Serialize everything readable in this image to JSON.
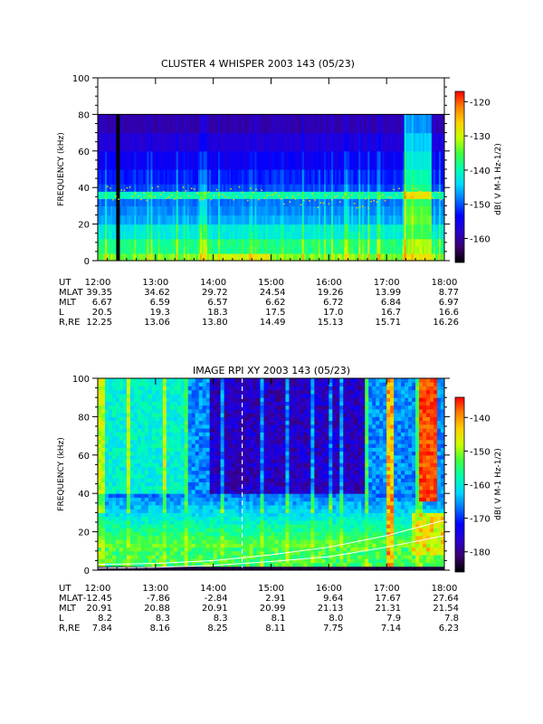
{
  "chart_data": [
    {
      "type": "heatmap",
      "title": "CLUSTER 4 WHISPER 2003 143 (05/23)",
      "ylabel": "FREQUENCY (kHz)",
      "ylim": [
        0,
        100
      ],
      "yticks": [
        "0",
        "20",
        "40",
        "60",
        "80",
        "100"
      ],
      "xlim_hours": [
        12,
        18
      ],
      "xticks": [
        "12:00",
        "13:00",
        "14:00",
        "15:00",
        "16:00",
        "17:00",
        "18:00"
      ],
      "data_top_khz": 80,
      "colorbar": {
        "label": "dB( V M-1 Hz-1/2)",
        "range": [
          -167,
          -117
        ],
        "ticks": [
          "-120",
          "-130",
          "-140",
          "-150",
          "-160"
        ],
        "colors": [
          "#000000",
          "#3a0070",
          "#2a00d0",
          "#0000ff",
          "#0070ff",
          "#00d8ff",
          "#00ffb0",
          "#40ff40",
          "#c8ff00",
          "#ffd000",
          "#ff8000",
          "#ff0000"
        ]
      },
      "ephemeris": {
        "labels": [
          "UT",
          "MLAT",
          "MLT",
          "L",
          "R,RE"
        ],
        "rows": [
          [
            "12:00",
            "13:00",
            "14:00",
            "15:00",
            "16:00",
            "17:00",
            "18:00"
          ],
          [
            "39.35",
            "34.62",
            "29.72",
            "24.54",
            "19.26",
            "13.99",
            "8.77"
          ],
          [
            "6.67",
            "6.59",
            "6.57",
            "6.62",
            "6.72",
            "6.84",
            "6.97"
          ],
          [
            "20.5",
            "19.3",
            "18.3",
            "17.5",
            "17.0",
            "16.7",
            "16.6"
          ],
          [
            "12.25",
            "13.06",
            "13.80",
            "14.49",
            "15.13",
            "15.71",
            "16.26"
          ]
        ]
      },
      "features": {
        "data_gap_hour": 12.32,
        "plasma_line_khz": 37,
        "intense_bursts_hours": [
          17.35,
          17.6
        ]
      }
    },
    {
      "type": "heatmap",
      "title": "IMAGE RPI XY 2003 143 (05/23)",
      "ylabel": "FREQUENCY (kHz)",
      "ylim": [
        0,
        100
      ],
      "yticks": [
        "0",
        "20",
        "40",
        "60",
        "80",
        "100"
      ],
      "xlim_hours": [
        12,
        18
      ],
      "xticks": [
        "12:00",
        "13:00",
        "14:00",
        "15:00",
        "16:00",
        "17:00",
        "18:00"
      ],
      "colorbar": {
        "label": "dB( V M-1 Hz-1/2)",
        "range": [
          -186,
          -134
        ],
        "ticks": [
          "-140",
          "-150",
          "-160",
          "-170",
          "-180"
        ],
        "colors": [
          "#000000",
          "#3a0070",
          "#2a00d0",
          "#0000ff",
          "#0070ff",
          "#00d8ff",
          "#00ffb0",
          "#40ff40",
          "#c8ff00",
          "#ffd000",
          "#ff8000",
          "#ff0000"
        ]
      },
      "ephemeris": {
        "labels": [
          "UT",
          "MLAT",
          "MLT",
          "L",
          "R,RE"
        ],
        "rows": [
          [
            "12:00",
            "13:00",
            "14:00",
            "15:00",
            "16:00",
            "17:00",
            "18:00"
          ],
          [
            "-12.45",
            "-7.86",
            "-2.84",
            "2.91",
            "9.64",
            "17.67",
            "27.64"
          ],
          [
            "20.91",
            "20.88",
            "20.91",
            "20.99",
            "21.13",
            "21.31",
            "21.54"
          ],
          [
            "8.2",
            "8.3",
            "8.3",
            "8.1",
            "8.0",
            "7.9",
            "7.8"
          ],
          [
            "7.84",
            "8.16",
            "8.25",
            "8.11",
            "7.75",
            "7.14",
            "6.23"
          ]
        ]
      },
      "features": {
        "dashed_marker_hour": 14.5,
        "intense_bursts_hours": [
          17.0,
          17.8
        ],
        "white_curves_khz": [
          [
            3,
            3.5,
            5,
            8,
            12,
            18,
            26
          ],
          [
            1,
            1.5,
            2.5,
            4.5,
            7,
            12,
            18
          ]
        ]
      }
    }
  ]
}
